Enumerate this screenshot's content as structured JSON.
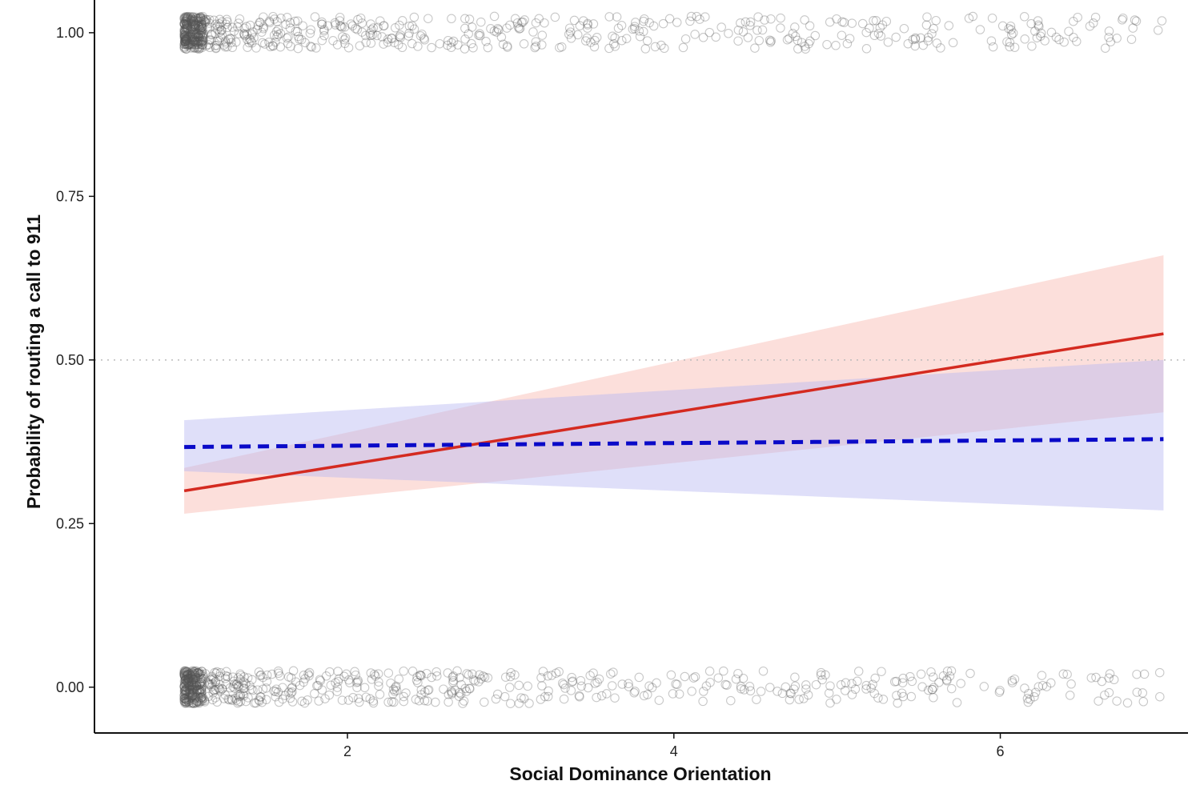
{
  "chart_data": {
    "type": "line",
    "title": "",
    "xlabel": "Social Dominance Orientation",
    "ylabel": "Probability of routing a call to 911",
    "xlim": [
      0.45,
      7.15
    ],
    "ylim": [
      -0.07,
      1.05
    ],
    "x_ticks": [
      {
        "value": 2,
        "label": "2"
      },
      {
        "value": 4,
        "label": "4"
      },
      {
        "value": 6,
        "label": "6"
      }
    ],
    "y_ticks": [
      {
        "value": 0,
        "label": "0.00"
      },
      {
        "value": 0.25,
        "label": "0.25"
      },
      {
        "value": 0.5,
        "label": "0.50"
      },
      {
        "value": 0.75,
        "label": "0.75"
      },
      {
        "value": 1,
        "label": "1.00"
      }
    ],
    "reference_line": {
      "y": 0.5,
      "style": "dotted",
      "color": "#bbbbbb"
    },
    "grid": false,
    "legend": "none",
    "series": [
      {
        "style": "solid",
        "color": "#d42a20",
        "band_color": "#f8b7b0",
        "x": [
          1,
          7
        ],
        "y": [
          0.3,
          0.54
        ],
        "lower": [
          0.265,
          0.42
        ],
        "upper": [
          0.335,
          0.66
        ]
      },
      {
        "style": "dashed",
        "color": "#0a0ac8",
        "band_color": "#b8b8f2",
        "x": [
          1,
          7
        ],
        "y": [
          0.367,
          0.379
        ],
        "lower": [
          0.33,
          0.27
        ],
        "upper": [
          0.408,
          0.5
        ]
      }
    ],
    "jitter_points": {
      "marker": "open-circle",
      "color": "#555555",
      "groups": [
        {
          "y": 1,
          "x_min": 1,
          "x_max": 7,
          "density": "heavy near x=1, sparse toward x=7"
        },
        {
          "y": 0,
          "x_min": 1,
          "x_max": 7,
          "density": "heavy near x=1, sparse toward x=7"
        }
      ]
    }
  }
}
